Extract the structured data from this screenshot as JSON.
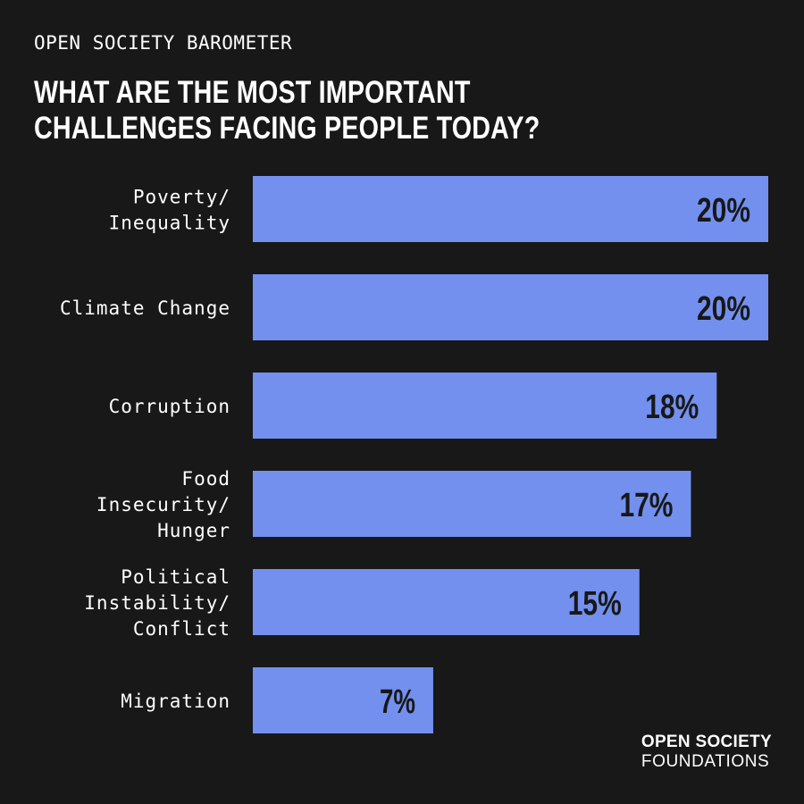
{
  "header": {
    "kicker": "OPEN SOCIETY BAROMETER",
    "title_line1": "WHAT ARE THE MOST IMPORTANT",
    "title_line2": "CHALLENGES FACING PEOPLE TODAY?"
  },
  "brand": {
    "line1": "OPEN SOCIETY",
    "line2": "FOUNDATIONS"
  },
  "colors": {
    "background": "#181818",
    "bar": "#7390ef",
    "text": "#ffffff",
    "value_text": "#181818"
  },
  "chart_data": {
    "type": "bar",
    "orientation": "horizontal",
    "title": "WHAT ARE THE MOST IMPORTANT CHALLENGES FACING PEOPLE TODAY?",
    "categories": [
      [
        "Poverty/",
        "Inequality"
      ],
      [
        "Climate Change"
      ],
      [
        "Corruption"
      ],
      [
        "Food",
        "Insecurity/",
        "Hunger"
      ],
      [
        "Political",
        "Instability/",
        "Conflict"
      ],
      [
        "Migration"
      ]
    ],
    "values": [
      20,
      20,
      18,
      17,
      15,
      7
    ],
    "value_labels": [
      "20%",
      "20%",
      "18%",
      "17%",
      "15%",
      "7%"
    ],
    "unit": "%",
    "xlim": [
      0,
      20
    ],
    "grid": false,
    "legend": "none"
  }
}
